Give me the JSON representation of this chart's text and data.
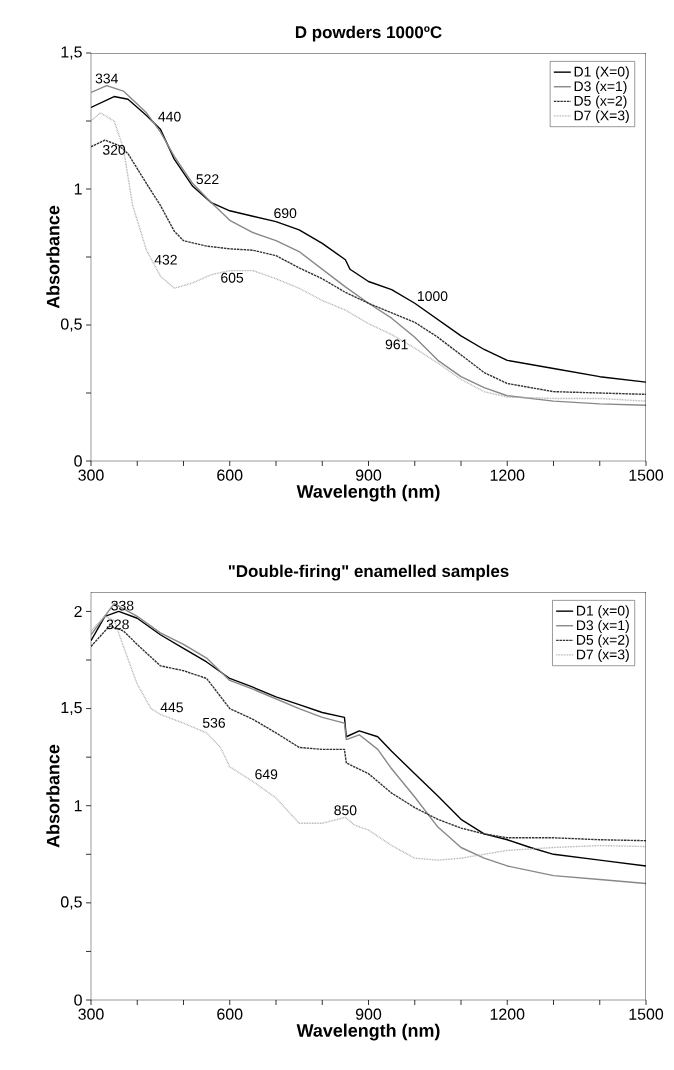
{
  "chart_data": [
    {
      "type": "line",
      "title": "D powders 1000ºC",
      "xlabel": "Wavelength (nm)",
      "ylabel": "Absorbance",
      "xlim": [
        300,
        1500
      ],
      "ylim": [
        0,
        1.5
      ],
      "xticks": [
        300,
        {
          "value": 400,
          "label": null
        },
        {
          "value": 500,
          "label": null
        },
        600,
        {
          "value": 700,
          "label": null
        },
        {
          "value": 800,
          "label": null
        },
        900,
        {
          "value": 1000,
          "label": null
        },
        {
          "value": 1100,
          "label": null
        },
        1200,
        {
          "value": 1300,
          "label": null
        },
        {
          "value": 1400,
          "label": null
        },
        1500
      ],
      "yticks": [
        0,
        {
          "value": 0.25,
          "label": null
        },
        {
          "value": 0.5,
          "label": "0,5"
        },
        {
          "value": 0.75,
          "label": null
        },
        1,
        {
          "value": 1.25,
          "label": null
        },
        {
          "value": 1.5,
          "label": "1,5"
        }
      ],
      "legend": "top right",
      "grid": false,
      "marker": "none",
      "line_style": "solid",
      "series": [
        {
          "name": "D1 (X=0)",
          "color": "#000000",
          "x": [
            300,
            350,
            380,
            420,
            450,
            480,
            520,
            560,
            600,
            650,
            700,
            750,
            800,
            850,
            860,
            900,
            950,
            1000,
            1050,
            1100,
            1150,
            1200,
            1300,
            1400,
            1500
          ],
          "values": [
            1.3,
            1.34,
            1.33,
            1.27,
            1.22,
            1.11,
            1.01,
            0.95,
            0.92,
            0.9,
            0.88,
            0.85,
            0.8,
            0.74,
            0.705,
            0.66,
            0.63,
            0.58,
            0.52,
            0.46,
            0.41,
            0.37,
            0.34,
            0.31,
            0.29
          ]
        },
        {
          "name": "D3 (x=1)",
          "color": "#888888",
          "x": [
            300,
            334,
            370,
            420,
            450,
            480,
            520,
            560,
            600,
            650,
            700,
            750,
            800,
            850,
            900,
            950,
            1000,
            1050,
            1100,
            1150,
            1200,
            1300,
            1400,
            1500
          ],
          "values": [
            1.355,
            1.38,
            1.36,
            1.28,
            1.21,
            1.12,
            1.02,
            0.95,
            0.885,
            0.84,
            0.81,
            0.77,
            0.705,
            0.64,
            0.58,
            0.525,
            0.455,
            0.37,
            0.31,
            0.27,
            0.24,
            0.22,
            0.21,
            0.205
          ]
        },
        {
          "name": "D5 (x=2)",
          "color": "#333333",
          "line_style": "dashed",
          "x": [
            300,
            330,
            360,
            380,
            420,
            450,
            480,
            500,
            550,
            600,
            650,
            700,
            750,
            800,
            850,
            900,
            950,
            1000,
            1050,
            1100,
            1150,
            1200,
            1300,
            1400,
            1500
          ],
          "values": [
            1.155,
            1.18,
            1.16,
            1.13,
            1.02,
            0.94,
            0.845,
            0.81,
            0.79,
            0.78,
            0.775,
            0.755,
            0.71,
            0.67,
            0.62,
            0.58,
            0.545,
            0.51,
            0.455,
            0.39,
            0.325,
            0.285,
            0.255,
            0.25,
            0.245
          ]
        },
        {
          "name": "D7 (X=3)",
          "color": "#aaaaaa",
          "line_style": "dotted",
          "x": [
            300,
            320,
            350,
            370,
            390,
            420,
            450,
            480,
            520,
            560,
            600,
            650,
            700,
            750,
            800,
            850,
            900,
            950,
            1000,
            1050,
            1100,
            1150,
            1200,
            1300,
            1400,
            1500
          ],
          "values": [
            1.25,
            1.28,
            1.25,
            1.15,
            0.94,
            0.775,
            0.68,
            0.635,
            0.655,
            0.685,
            0.7,
            0.7,
            0.67,
            0.635,
            0.59,
            0.555,
            0.505,
            0.465,
            0.415,
            0.36,
            0.3,
            0.255,
            0.235,
            0.23,
            0.23,
            0.22
          ]
        }
      ],
      "annotations": [
        {
          "text": "334",
          "x": 334,
          "y": 1.38
        },
        {
          "text": "440",
          "x": 440,
          "y": 1.24
        },
        {
          "text": "522",
          "x": 522,
          "y": 1.01
        },
        {
          "text": "320",
          "x": 320,
          "y": 1.17
        },
        {
          "text": "432",
          "x": 432,
          "y": 0.74
        },
        {
          "text": "605",
          "x": 605,
          "y": 0.7
        },
        {
          "text": "690",
          "x": 690,
          "y": 0.885
        },
        {
          "text": "1000",
          "x": 1000,
          "y": 0.58
        },
        {
          "text": "961",
          "x": 961,
          "y": 0.455
        }
      ]
    },
    {
      "type": "line",
      "title": "\"Double-firing\" enamelled samples",
      "xlabel": "Wavelength (nm)",
      "ylabel": "Absorbance",
      "xlim": [
        300,
        1500
      ],
      "ylim": [
        0,
        2.1
      ],
      "xticks": [
        300,
        {
          "value": 400,
          "label": null
        },
        {
          "value": 500,
          "label": null
        },
        600,
        {
          "value": 700,
          "label": null
        },
        {
          "value": 800,
          "label": null
        },
        900,
        {
          "value": 1000,
          "label": null
        },
        {
          "value": 1100,
          "label": null
        },
        1200,
        {
          "value": 1300,
          "label": null
        },
        {
          "value": 1400,
          "label": null
        },
        1500
      ],
      "yticks": [
        0,
        {
          "value": 0.25,
          "label": null
        },
        {
          "value": 0.5,
          "label": "0,5"
        },
        {
          "value": 0.75,
          "label": null
        },
        1,
        {
          "value": 1.25,
          "label": null
        },
        {
          "value": 1.5,
          "label": "1,5"
        },
        {
          "value": 1.75,
          "label": null
        },
        2
      ],
      "legend": "top right",
      "grid": false,
      "marker": "none",
      "line_style": "solid",
      "series": [
        {
          "name": "D1 (x=0)",
          "color": "#000000",
          "x": [
            300,
            330,
            360,
            400,
            450,
            500,
            550,
            600,
            650,
            700,
            750,
            800,
            848,
            852,
            880,
            920,
            950,
            1000,
            1050,
            1100,
            1150,
            1200,
            1250,
            1300,
            1400,
            1500
          ],
          "values": [
            1.85,
            1.975,
            2.0,
            1.965,
            1.88,
            1.81,
            1.74,
            1.655,
            1.61,
            1.56,
            1.52,
            1.48,
            1.455,
            1.355,
            1.385,
            1.355,
            1.28,
            1.165,
            1.05,
            0.93,
            0.855,
            0.825,
            0.785,
            0.75,
            0.72,
            0.69
          ]
        },
        {
          "name": "D3 (x=1)",
          "color": "#888888",
          "x": [
            300,
            350,
            400,
            450,
            500,
            550,
            600,
            650,
            700,
            750,
            800,
            848,
            852,
            880,
            920,
            950,
            1000,
            1050,
            1100,
            1150,
            1200,
            1300,
            1400,
            1500
          ],
          "values": [
            1.88,
            2.04,
            1.975,
            1.89,
            1.83,
            1.76,
            1.645,
            1.6,
            1.55,
            1.5,
            1.455,
            1.425,
            1.34,
            1.365,
            1.29,
            1.19,
            1.045,
            0.89,
            0.785,
            0.73,
            0.69,
            0.64,
            0.62,
            0.6
          ]
        },
        {
          "name": "D5 (x=2)",
          "color": "#333333",
          "line_style": "dashed",
          "x": [
            300,
            340,
            370,
            400,
            450,
            500,
            550,
            600,
            650,
            700,
            750,
            800,
            848,
            852,
            900,
            950,
            1000,
            1050,
            1100,
            1150,
            1200,
            1300,
            1400,
            1500
          ],
          "values": [
            1.82,
            1.925,
            1.9,
            1.83,
            1.72,
            1.695,
            1.655,
            1.5,
            1.445,
            1.375,
            1.3,
            1.29,
            1.29,
            1.22,
            1.165,
            1.065,
            0.99,
            0.93,
            0.885,
            0.855,
            0.835,
            0.835,
            0.825,
            0.82
          ]
        },
        {
          "name": "D7 (x=3)",
          "color": "#aaaaaa",
          "line_style": "dotted",
          "x": [
            300,
            330,
            350,
            370,
            400,
            430,
            450,
            500,
            550,
            580,
            600,
            650,
            700,
            750,
            800,
            850,
            870,
            900,
            950,
            1000,
            1050,
            1100,
            1150,
            1200,
            1300,
            1400,
            1500
          ],
          "values": [
            1.9,
            1.975,
            1.955,
            1.82,
            1.625,
            1.5,
            1.47,
            1.425,
            1.375,
            1.3,
            1.2,
            1.125,
            1.04,
            0.91,
            0.91,
            0.94,
            0.9,
            0.875,
            0.795,
            0.73,
            0.72,
            0.73,
            0.75,
            0.77,
            0.785,
            0.795,
            0.79
          ]
        }
      ],
      "annotations": [
        {
          "text": "338",
          "x": 338,
          "y": 2.03
        },
        {
          "text": "328",
          "x": 328,
          "y": 1.97
        },
        {
          "text": "445",
          "x": 445,
          "y": 1.47
        },
        {
          "text": "536",
          "x": 536,
          "y": 1.39
        },
        {
          "text": "649",
          "x": 649,
          "y": 1.125
        },
        {
          "text": "850",
          "x": 850,
          "y": 0.94
        }
      ]
    }
  ]
}
